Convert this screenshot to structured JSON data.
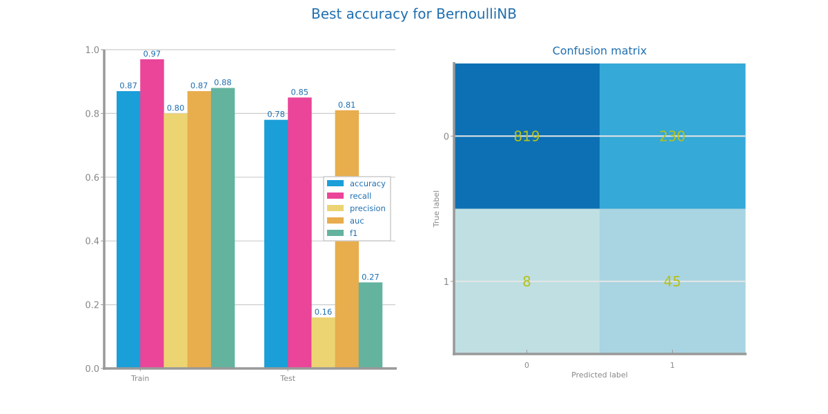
{
  "figure": {
    "title": "Best accuracy for BernoulliNB"
  },
  "colors": {
    "title": "#1f6fb0",
    "axis": "#999999",
    "grid": "#cccccc",
    "tick_text": "#888888",
    "value_text": "#1f6fb0",
    "cm_text": "#b5c11a"
  },
  "chart_data": [
    {
      "type": "bar",
      "categories": [
        "Train",
        "Test"
      ],
      "ylim": [
        0,
        1.0
      ],
      "yticks": [
        0.0,
        0.2,
        0.4,
        0.6,
        0.8,
        1.0
      ],
      "grid": true,
      "legend_position": "center-right",
      "series": [
        {
          "name": "accuracy",
          "values": [
            0.87,
            0.78
          ],
          "labels": [
            "0.87",
            "0.78"
          ],
          "color": "#1a9fd8"
        },
        {
          "name": "recall",
          "values": [
            0.97,
            0.85
          ],
          "labels": [
            "0.97",
            "0.85"
          ],
          "color": "#ea4599"
        },
        {
          "name": "precision",
          "values": [
            0.8,
            0.16
          ],
          "labels": [
            "0.80",
            "0.16"
          ],
          "color": "#ecd473"
        },
        {
          "name": "auc",
          "values": [
            0.87,
            0.81
          ],
          "labels": [
            "0.87",
            "0.81"
          ],
          "color": "#e8ad4d"
        },
        {
          "name": "f1",
          "values": [
            0.88,
            0.27
          ],
          "labels": [
            "0.88",
            "0.27"
          ],
          "color": "#63b39f"
        }
      ]
    },
    {
      "type": "heatmap",
      "title": "Confusion matrix",
      "xlabel": "Predicted label",
      "ylabel": "True label",
      "x_ticks": [
        "0",
        "1"
      ],
      "y_ticks": [
        "0",
        "1"
      ],
      "matrix": [
        [
          819,
          230
        ],
        [
          8,
          45
        ]
      ],
      "cell_colors": [
        [
          "#0d70b4",
          "#35a9d7"
        ],
        [
          "#bfdfe2",
          "#a9d4e2"
        ]
      ]
    }
  ]
}
